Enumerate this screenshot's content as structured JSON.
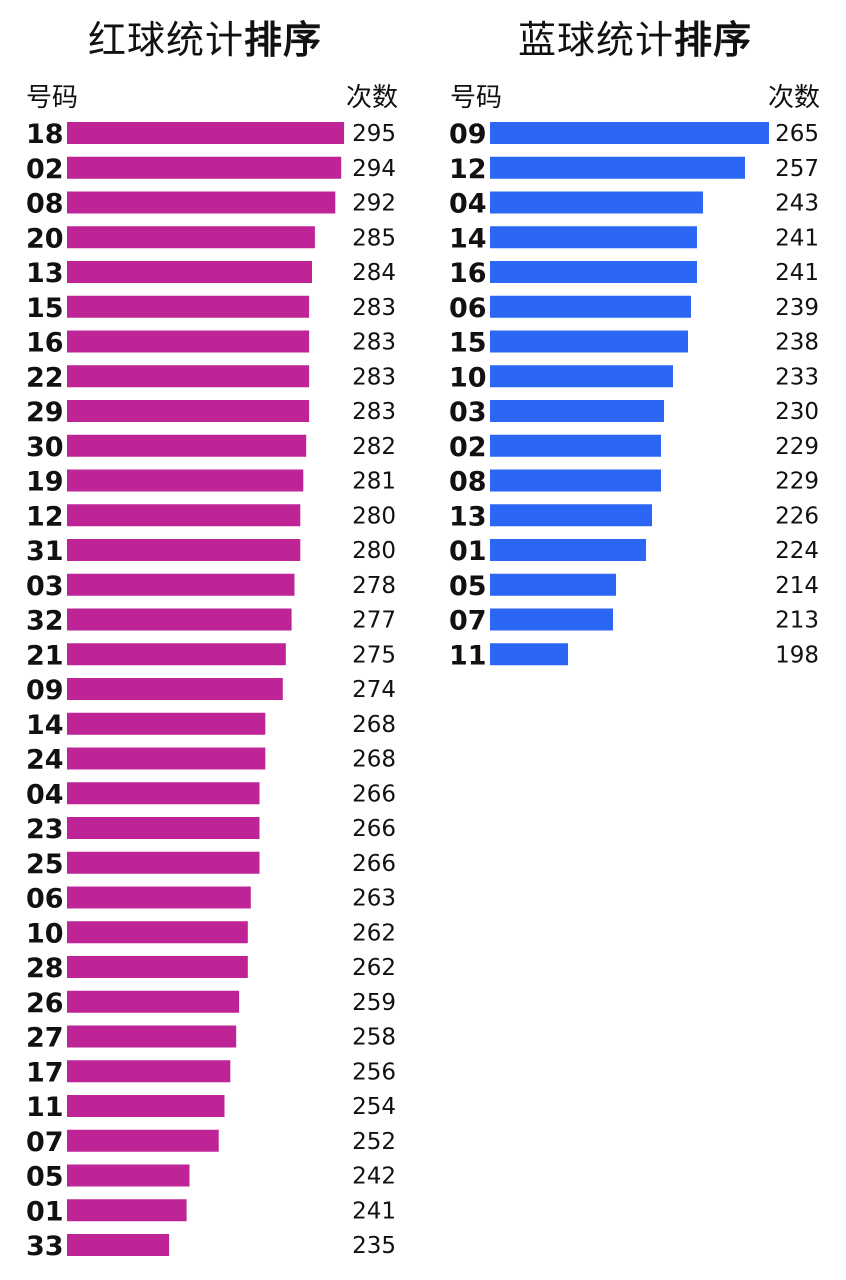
{
  "chart_data": [
    {
      "type": "bar",
      "orientation": "horizontal",
      "title_regular": "红球统计",
      "title_bold": "排序",
      "label_header": "号码",
      "value_header": "次数",
      "bar_color": "#BE2496",
      "xlim": [
        200,
        296
      ],
      "categories": [
        "18",
        "02",
        "08",
        "20",
        "13",
        "15",
        "16",
        "22",
        "29",
        "30",
        "19",
        "12",
        "31",
        "03",
        "32",
        "21",
        "09",
        "14",
        "24",
        "04",
        "23",
        "25",
        "06",
        "10",
        "28",
        "26",
        "27",
        "17",
        "11",
        "07",
        "05",
        "01",
        "33"
      ],
      "values": [
        295,
        294,
        292,
        285,
        284,
        283,
        283,
        283,
        283,
        282,
        281,
        280,
        280,
        278,
        277,
        275,
        274,
        268,
        268,
        266,
        266,
        266,
        263,
        262,
        262,
        259,
        258,
        256,
        254,
        252,
        242,
        241,
        235
      ]
    },
    {
      "type": "bar",
      "orientation": "horizontal",
      "title_regular": "蓝球统计",
      "title_bold": "排序",
      "label_header": "号码",
      "value_header": "次数",
      "bar_color": "#2B66F4",
      "xlim": [
        172,
        265
      ],
      "categories": [
        "09",
        "12",
        "04",
        "14",
        "16",
        "06",
        "15",
        "10",
        "03",
        "02",
        "08",
        "13",
        "01",
        "05",
        "07",
        "11"
      ],
      "values": [
        265,
        257,
        243,
        241,
        241,
        239,
        238,
        233,
        230,
        229,
        229,
        226,
        224,
        214,
        213,
        198
      ]
    }
  ]
}
